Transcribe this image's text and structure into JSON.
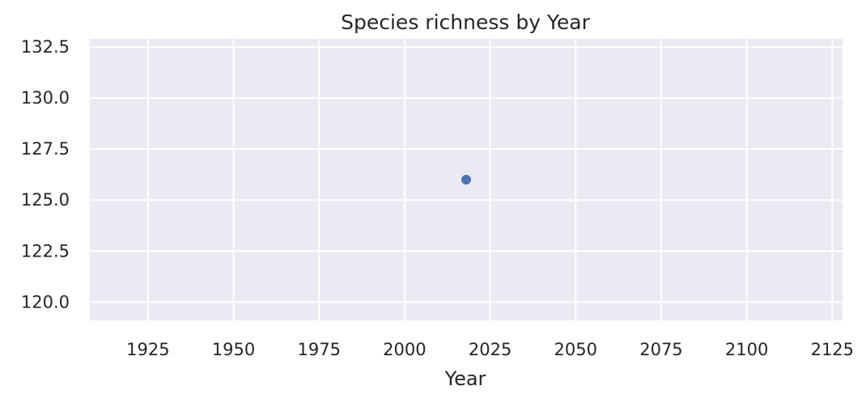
{
  "chart_data": {
    "type": "scatter",
    "title": "Species richness by Year",
    "xlabel": "Year",
    "ylabel": "",
    "xlim": [
      1908,
      2128
    ],
    "ylim": [
      119.1,
      132.9
    ],
    "xticks": [
      1925,
      1950,
      1975,
      2000,
      2025,
      2050,
      2075,
      2100,
      2125
    ],
    "yticks": [
      120.0,
      122.5,
      125.0,
      127.5,
      130.0,
      132.5
    ],
    "ytick_labels": [
      "120.0",
      "122.5",
      "125.0",
      "127.5",
      "130.0",
      "132.5"
    ],
    "grid": true,
    "series": [
      {
        "name": "Species richness",
        "x": [
          2018
        ],
        "y": [
          126.0
        ],
        "color": "#4c72b0"
      }
    ],
    "colors": {
      "plot_background": "#eaeaf2",
      "grid": "#ffffff",
      "text": "#262626"
    }
  }
}
